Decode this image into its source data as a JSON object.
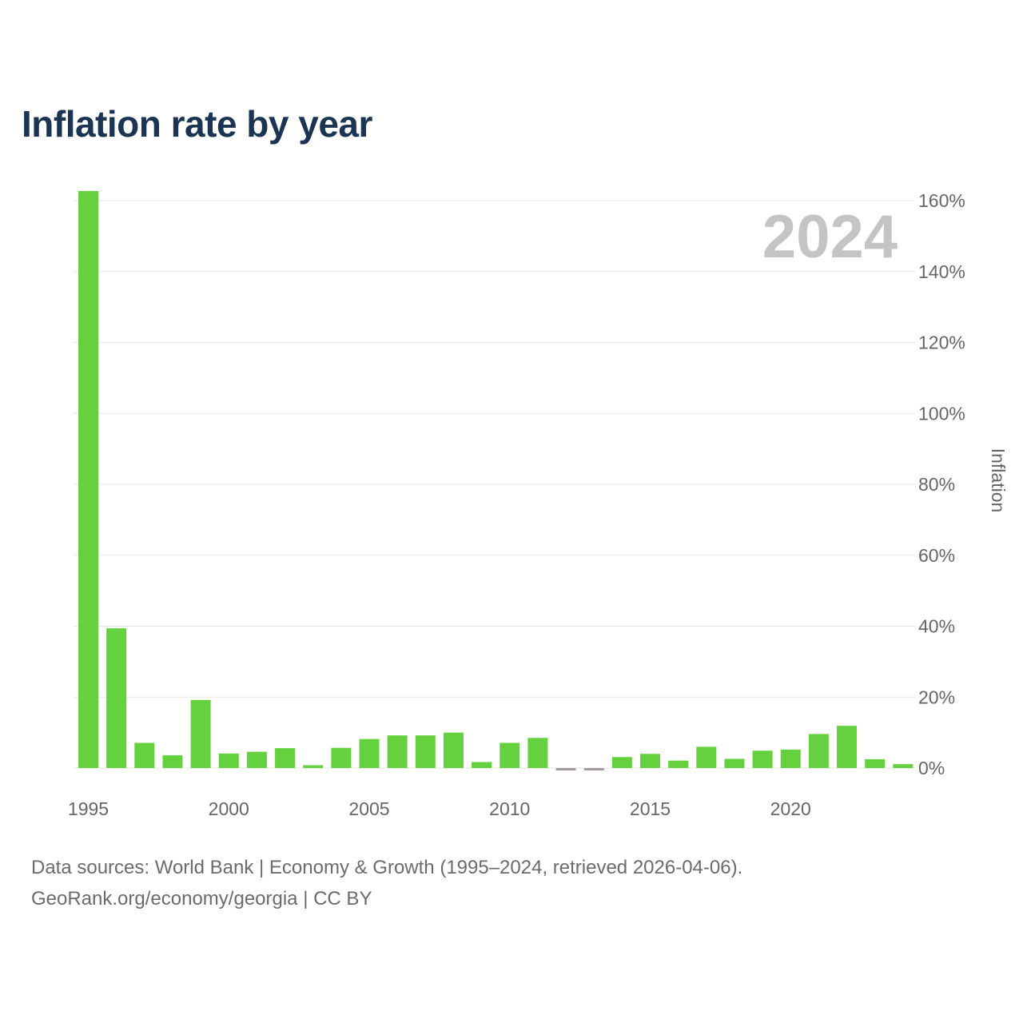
{
  "title": "Inflation rate by year",
  "highlight_year": "2024",
  "footer": {
    "line1": "Data sources: World Bank | Economy & Growth (1995–2024, retrieved 2026-04-06).",
    "line2": "GeoRank.org/economy/georgia | CC BY"
  },
  "colors": {
    "positive": "#66d13f",
    "negative": "#a09a9a",
    "title": "#1b3453"
  },
  "chart_data": {
    "type": "bar",
    "title": "Inflation rate by year",
    "xlabel": "",
    "ylabel": "Inflation",
    "ylim": [
      0,
      160
    ],
    "y_ticks": [
      0,
      20,
      40,
      60,
      80,
      100,
      120,
      140,
      160
    ],
    "y_tick_labels": [
      "0%",
      "20%",
      "40%",
      "60%",
      "80%",
      "100%",
      "120%",
      "140%",
      "160%"
    ],
    "x_ticks": [
      1995,
      2000,
      2005,
      2010,
      2015,
      2020
    ],
    "x_tick_labels": [
      "1995",
      "2000",
      "2005",
      "2010",
      "2015",
      "2020"
    ],
    "grid": true,
    "categories": [
      1995,
      1996,
      1997,
      1998,
      1999,
      2000,
      2001,
      2002,
      2003,
      2004,
      2005,
      2006,
      2007,
      2008,
      2009,
      2010,
      2011,
      2012,
      2013,
      2014,
      2015,
      2016,
      2017,
      2018,
      2019,
      2020,
      2021,
      2022,
      2023,
      2024
    ],
    "values": [
      162.7,
      39.4,
      7.1,
      3.6,
      19.2,
      4.1,
      4.6,
      5.6,
      0.8,
      5.7,
      8.2,
      9.2,
      9.2,
      10.0,
      1.7,
      7.1,
      8.5,
      -0.9,
      -0.5,
      3.1,
      4.0,
      2.1,
      6.0,
      2.6,
      4.9,
      5.2,
      9.6,
      11.9,
      2.5,
      1.1
    ]
  }
}
